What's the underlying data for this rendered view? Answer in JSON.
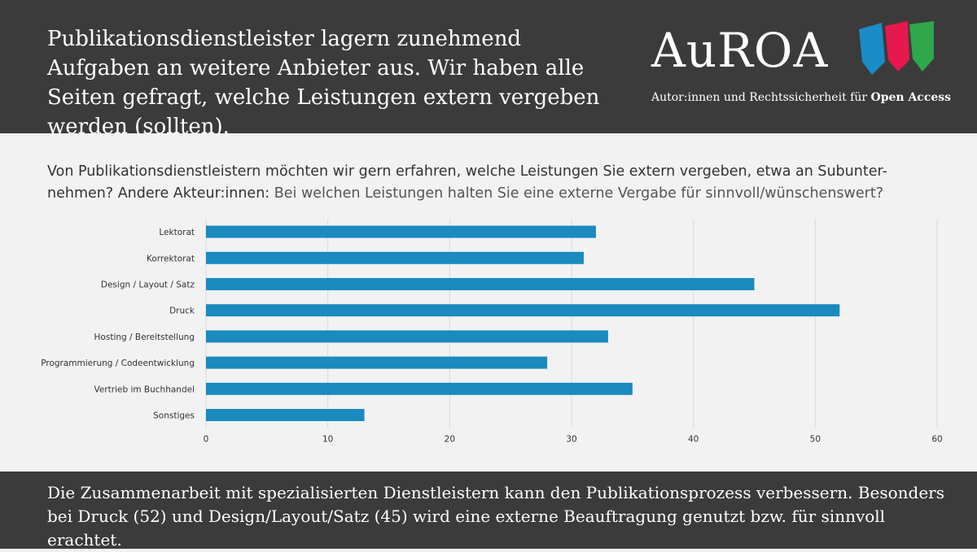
{
  "header": {
    "text": "Publikationsdienstleister lagern zunehmend Aufgaben an weitere Anbieter aus. Wir haben alle Seiten gefragt, welche Leistungen extern vergeben werden (sollten)."
  },
  "logo": {
    "word": "AuROA",
    "tagline_prefix": "Autor:innen und Rechtssicherheit für ",
    "tagline_bold": "Open Access",
    "colors": [
      "#1a8cc8",
      "#e5194d",
      "#2ea84a"
    ]
  },
  "question": {
    "part1": "Von Publikationsdienstleistern möchten wir gern erfahren, welche Leistungen Sie extern vergeben, etwa an Subunter-nehmen? Andere Akteur:innen: ",
    "part2": "Bei welchen Leistungen halten Sie eine externe Vergabe für sinnvoll/wünschenswert?"
  },
  "chart_data": {
    "type": "bar",
    "orientation": "horizontal",
    "categories": [
      "Lektorat",
      "Korrektorat",
      "Design / Layout / Satz",
      "Druck",
      "Hosting / Bereitstellung",
      "Programmierung / Codeentwicklung",
      "Vertrieb im Buchhandel",
      "Sonstiges"
    ],
    "values": [
      32,
      31,
      45,
      52,
      33,
      28,
      35,
      13
    ],
    "xlim": [
      0,
      60
    ],
    "xticks": [
      0,
      10,
      20,
      30,
      40,
      50,
      60
    ],
    "grid": true,
    "bar_color": "#1a8abf",
    "grid_color": "#d9d9d9"
  },
  "footer": {
    "text": "Die Zusammenarbeit mit spezialisierten Dienstleistern kann den Publikationsprozess verbessern. Besonders bei Druck (52) und Design/Layout/Satz (45) wird eine externe Beauftragung genutzt bzw. für sinnvoll erachtet."
  }
}
